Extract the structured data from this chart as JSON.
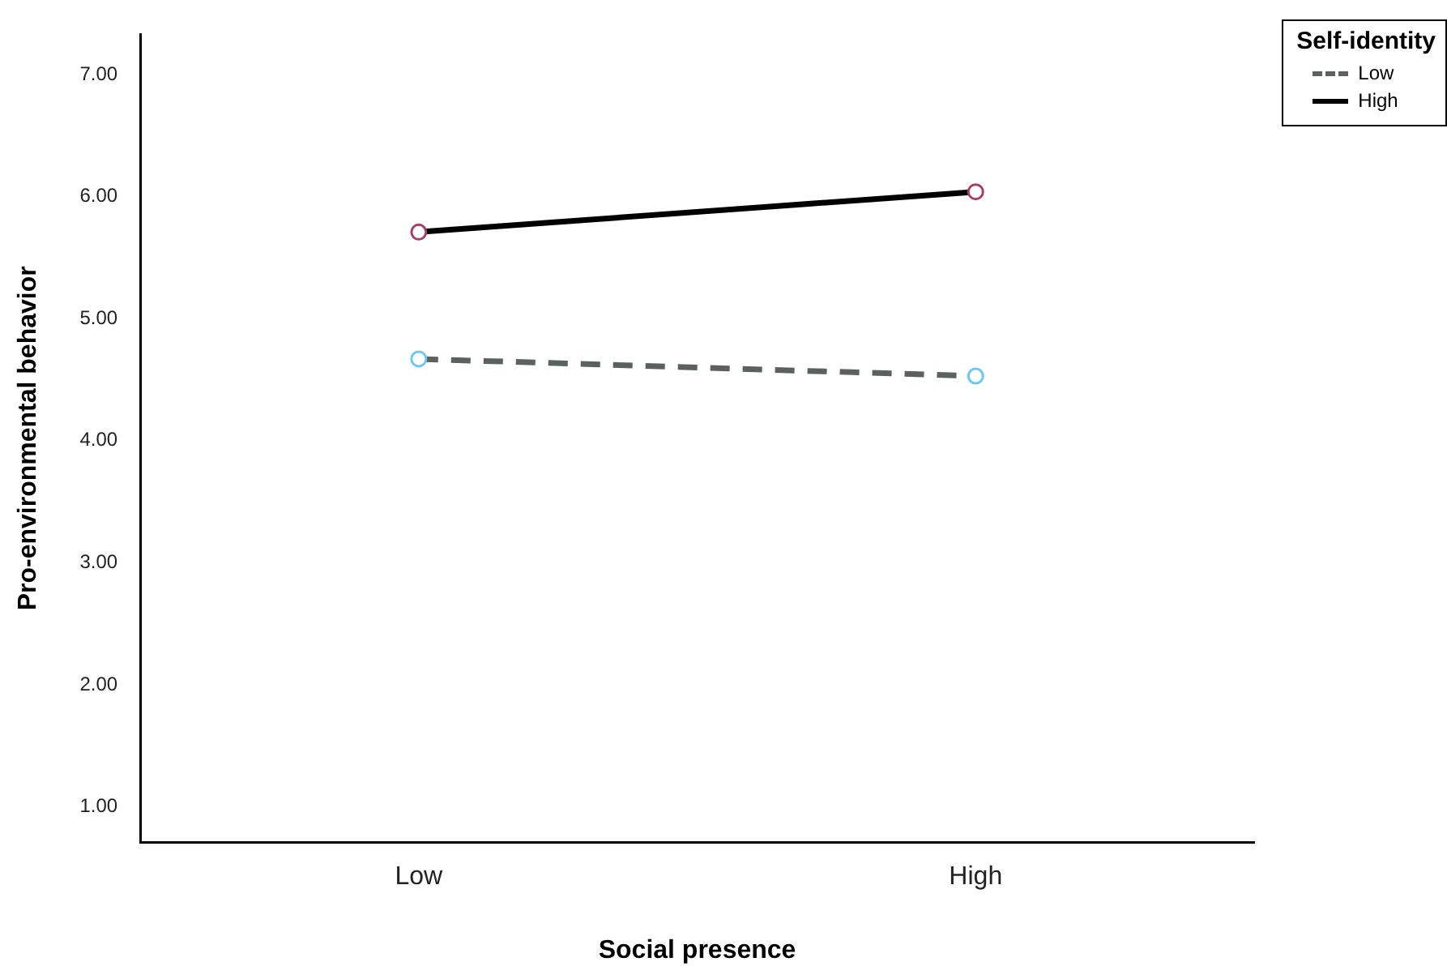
{
  "chart_data": {
    "type": "line",
    "xlabel": "Social presence",
    "ylabel": "Pro-environmental behavior",
    "legend_title": "Self-identity",
    "categories": [
      "Low",
      "High"
    ],
    "series": [
      {
        "name": "Low",
        "color": "#5a615f",
        "colors": [
          "#6ec6f5",
          "#6ec6f5"
        ],
        "line_style": "dashed",
        "values": [
          4.67,
          4.53
        ]
      },
      {
        "name": "High",
        "color": "#000000",
        "colors": [
          "#a3406a",
          "#a3406a"
        ],
        "line_style": "solid",
        "values": [
          5.71,
          6.04
        ]
      }
    ],
    "ylim": [
      0.71,
      7.33
    ],
    "yticks": [
      {
        "value": 1,
        "label": "1.00"
      },
      {
        "value": 2,
        "label": "2.00"
      },
      {
        "value": 3,
        "label": "3.00"
      },
      {
        "value": 4,
        "label": "4.00"
      },
      {
        "value": 5,
        "label": "5.00"
      },
      {
        "value": 6,
        "label": "6.00"
      },
      {
        "value": 7,
        "label": "7.00"
      }
    ],
    "grid": false,
    "legend": "top right",
    "marker": "circle"
  }
}
